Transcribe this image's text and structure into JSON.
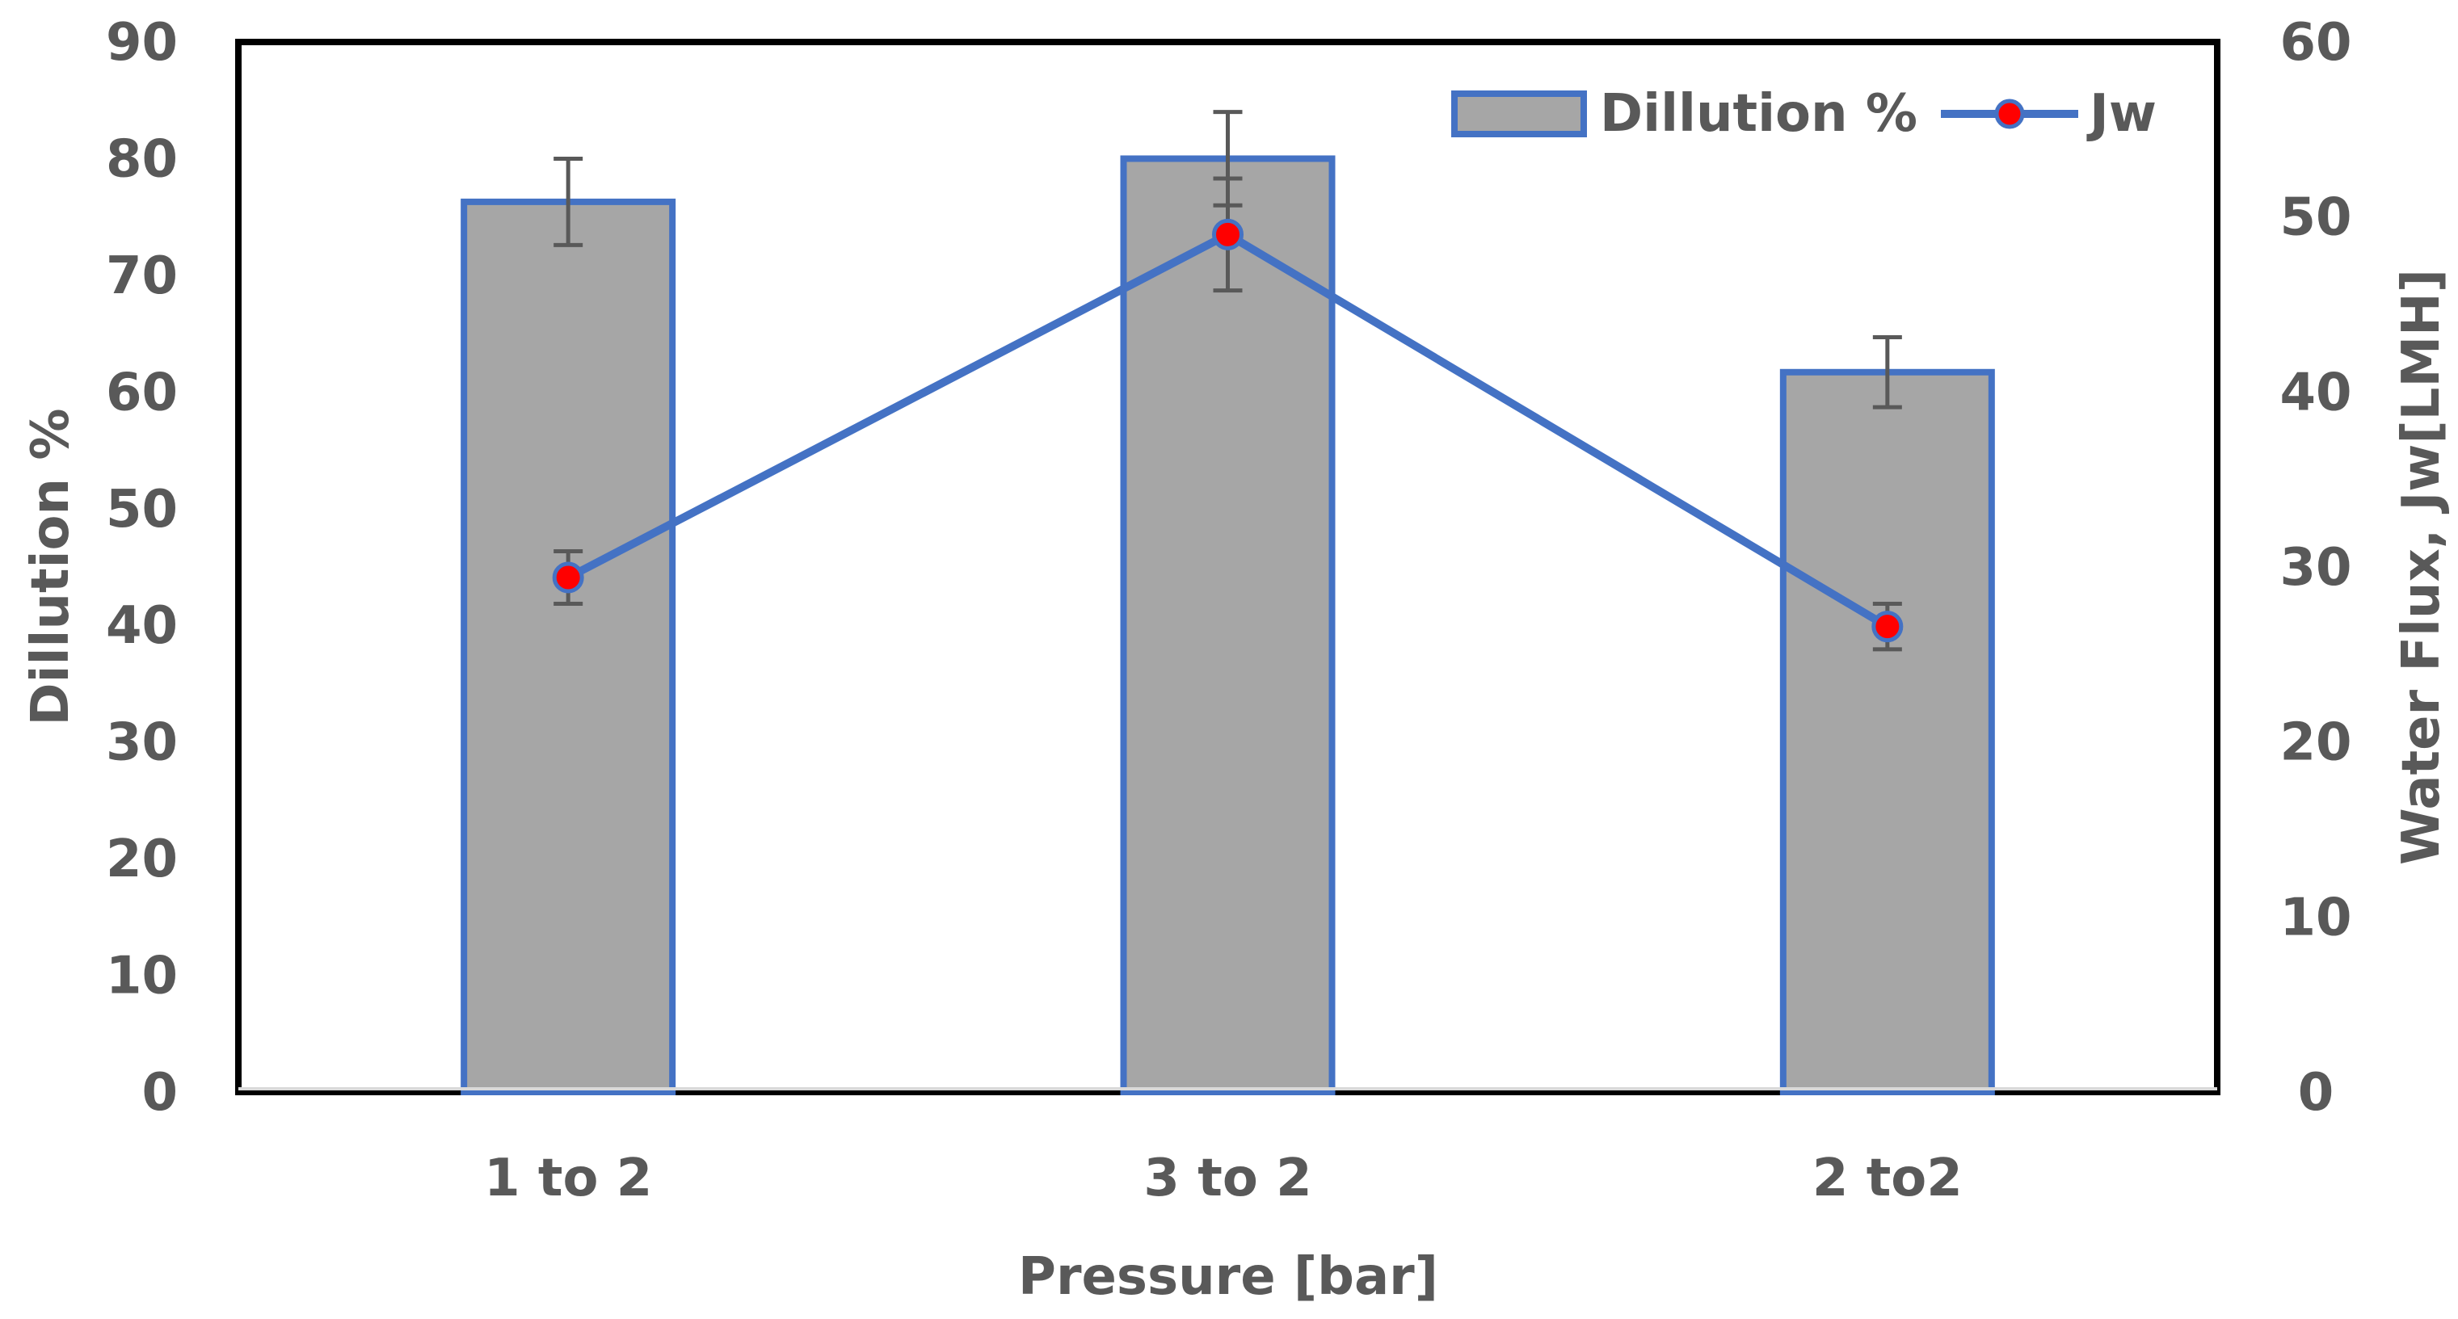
{
  "chart_data": {
    "type": "bar",
    "categories": [
      "1 to 2",
      "3 to 2",
      "2 to2"
    ],
    "xlabel": "Pressure [bar]",
    "ylabel": "Dillution %",
    "y2label": "Water Flux, Jw[LMH]",
    "ylim": [
      0,
      90
    ],
    "y2lim": [
      0,
      60
    ],
    "yticks": [
      "0",
      "10",
      "20",
      "30",
      "40",
      "50",
      "60",
      "70",
      "80",
      "90"
    ],
    "y2ticks": [
      "0",
      "10",
      "20",
      "30",
      "40",
      "50",
      "60"
    ],
    "grid": false,
    "legend_position": "top-right",
    "series": [
      {
        "name": "Dillution %",
        "type": "bar",
        "axis": "left",
        "values": [
          76.3,
          80.0,
          61.7
        ],
        "errors": [
          3.7,
          4.0,
          3.0
        ],
        "fill": "#a6a6a6",
        "stroke": "#4472c4"
      },
      {
        "name": "Jw",
        "type": "line",
        "axis": "right",
        "values": [
          29.4,
          49.0,
          26.6
        ],
        "errors": [
          1.5,
          3.2,
          1.3
        ],
        "line_color": "#4472c4",
        "marker_color": "#ff0000"
      }
    ]
  }
}
